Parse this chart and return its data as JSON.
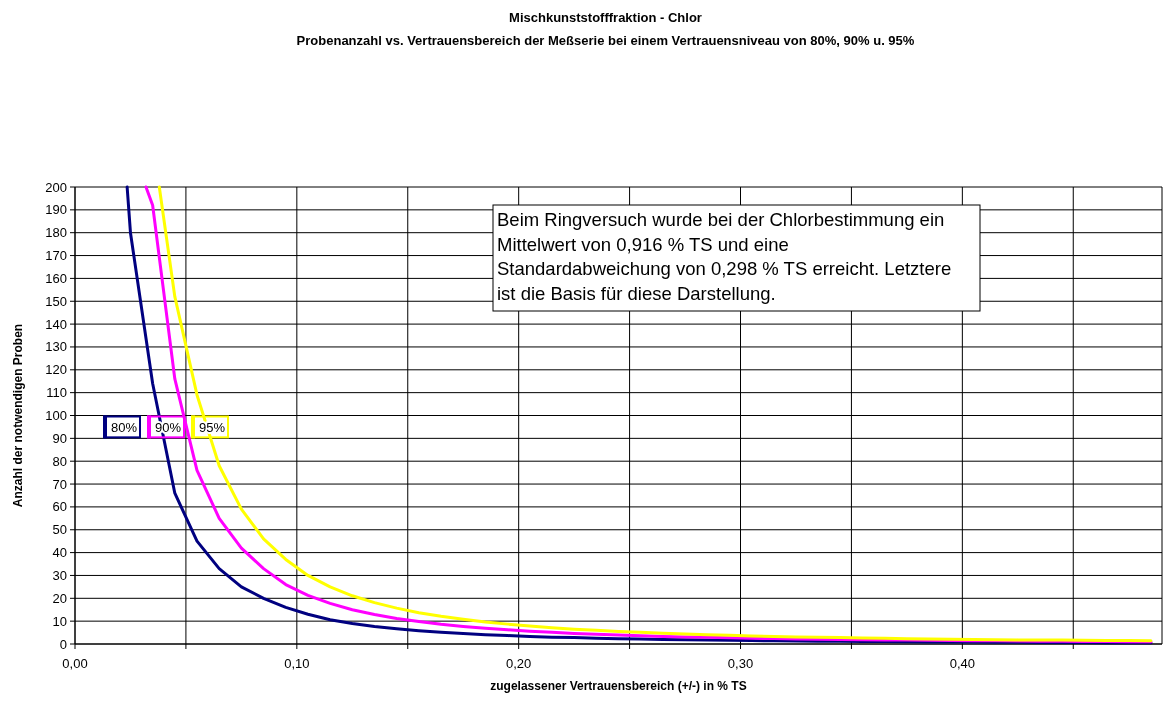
{
  "chart_data": {
    "type": "line",
    "title": "Mischkunststofffraktion - Chlor",
    "subtitle": "Probenanzahl vs. Vertrauensbereich der Meßserie bei einem Vertrauensniveau von 80%, 90% u. 95%",
    "xlabel": "zugelassener Vertrauensbereich (+/-) in % TS",
    "ylabel": "Anzahl der notwendigen Proben",
    "annotations": [
      "Beim Ringversuch wurde bei der Chlorbestimmung ein Mittelwert von 0,916 % TS und eine Standardabweichung von 0,298 % TS erreicht. Letztere ist die Basis für diese Darstellung."
    ],
    "xlim": [
      0,
      0.49
    ],
    "ylim": [
      0,
      200
    ],
    "xticks": [
      {
        "value": 0,
        "label": "0,00"
      },
      {
        "value": 0.05,
        "label": null
      },
      {
        "value": 0.1,
        "label": "0,10"
      },
      {
        "value": 0.15,
        "label": null
      },
      {
        "value": 0.2,
        "label": "0,20"
      },
      {
        "value": 0.25,
        "label": null
      },
      {
        "value": 0.3,
        "label": "0,30"
      },
      {
        "value": 0.35,
        "label": null
      },
      {
        "value": 0.4,
        "label": "0,40"
      },
      {
        "value": 0.45,
        "label": null
      }
    ],
    "yticks": [
      0,
      10,
      20,
      30,
      40,
      50,
      60,
      70,
      80,
      90,
      100,
      110,
      120,
      130,
      140,
      150,
      160,
      170,
      180,
      190,
      200
    ],
    "grid": true,
    "legend": "left",
    "marker": "none",
    "line_style": "solid",
    "series": [
      {
        "name": "80%",
        "color": "#000080",
        "x": [
          0.0235,
          0.025,
          0.035,
          0.045,
          0.055,
          0.065,
          0.075,
          0.085,
          0.095,
          0.105,
          0.115,
          0.125,
          0.135,
          0.145,
          0.155,
          0.165,
          0.175,
          0.185,
          0.195,
          0.205,
          0.215,
          0.225,
          0.235,
          0.245,
          0.255,
          0.265,
          0.275,
          0.285,
          0.295,
          0.305,
          0.315,
          0.325,
          0.335,
          0.345,
          0.355,
          0.365,
          0.375,
          0.385,
          0.395,
          0.405,
          0.415,
          0.425,
          0.435,
          0.445,
          0.455,
          0.465,
          0.475,
          0.485
        ],
        "values": [
          200,
          180,
          114,
          66,
          45,
          33,
          25,
          20,
          16,
          13,
          10.6,
          9,
          7.7,
          6.7,
          5.8,
          5.1,
          4.6,
          4.1,
          3.7,
          3.3,
          3,
          2.8,
          2.5,
          2.3,
          2.2,
          2,
          1.9,
          1.7,
          1.6,
          1.5,
          1.4,
          1.3,
          1.2,
          1.2,
          1.1,
          1.1,
          1,
          0.9,
          0.9,
          0.9,
          0.8,
          0.8,
          0.7,
          0.7,
          0.7,
          0.6,
          0.6,
          0.6
        ]
      },
      {
        "name": "90%",
        "color": "#ff00ff",
        "x": [
          0.032,
          0.035,
          0.045,
          0.055,
          0.065,
          0.075,
          0.085,
          0.095,
          0.105,
          0.115,
          0.125,
          0.135,
          0.145,
          0.155,
          0.165,
          0.175,
          0.185,
          0.195,
          0.205,
          0.215,
          0.225,
          0.235,
          0.245,
          0.255,
          0.265,
          0.275,
          0.285,
          0.295,
          0.305,
          0.315,
          0.325,
          0.335,
          0.345,
          0.355,
          0.365,
          0.375,
          0.385,
          0.395,
          0.405,
          0.415,
          0.425,
          0.435,
          0.445,
          0.455,
          0.465,
          0.475,
          0.485
        ],
        "values": [
          200,
          192,
          116,
          76,
          55,
          42,
          33,
          26,
          21.3,
          17.8,
          15,
          12.9,
          11.2,
          9.8,
          8.6,
          7.7,
          6.9,
          6.2,
          5.6,
          5.1,
          4.6,
          4.3,
          3.9,
          3.6,
          3.3,
          3.1,
          2.9,
          2.7,
          2.5,
          2.4,
          2.2,
          2.1,
          2,
          1.9,
          1.8,
          1.7,
          1.6,
          1.5,
          1.4,
          1.4,
          1.3,
          1.2,
          1.2,
          1.1,
          1.1,
          1,
          1
        ]
      },
      {
        "name": "95%",
        "color": "#ffff00",
        "x": [
          0.038,
          0.045,
          0.055,
          0.065,
          0.075,
          0.085,
          0.095,
          0.105,
          0.115,
          0.125,
          0.135,
          0.145,
          0.155,
          0.165,
          0.175,
          0.185,
          0.195,
          0.205,
          0.215,
          0.225,
          0.235,
          0.245,
          0.255,
          0.265,
          0.275,
          0.285,
          0.295,
          0.305,
          0.315,
          0.325,
          0.335,
          0.345,
          0.355,
          0.365,
          0.375,
          0.385,
          0.395,
          0.405,
          0.415,
          0.425,
          0.435,
          0.445,
          0.455,
          0.465,
          0.475,
          0.485
        ],
        "values": [
          200,
          152,
          109,
          78,
          59,
          46,
          37,
          30,
          25,
          21.1,
          18.1,
          15.7,
          13.7,
          12.1,
          10.8,
          9.6,
          8.7,
          7.9,
          7.1,
          6.5,
          6,
          5.5,
          5.1,
          4.7,
          4.4,
          4.1,
          3.8,
          3.5,
          3.3,
          3.1,
          2.9,
          2.8,
          2.6,
          2.5,
          2.3,
          2.2,
          2.1,
          2,
          1.9,
          1.8,
          1.7,
          1.7,
          1.6,
          1.5,
          1.5,
          1.4
        ]
      }
    ]
  }
}
